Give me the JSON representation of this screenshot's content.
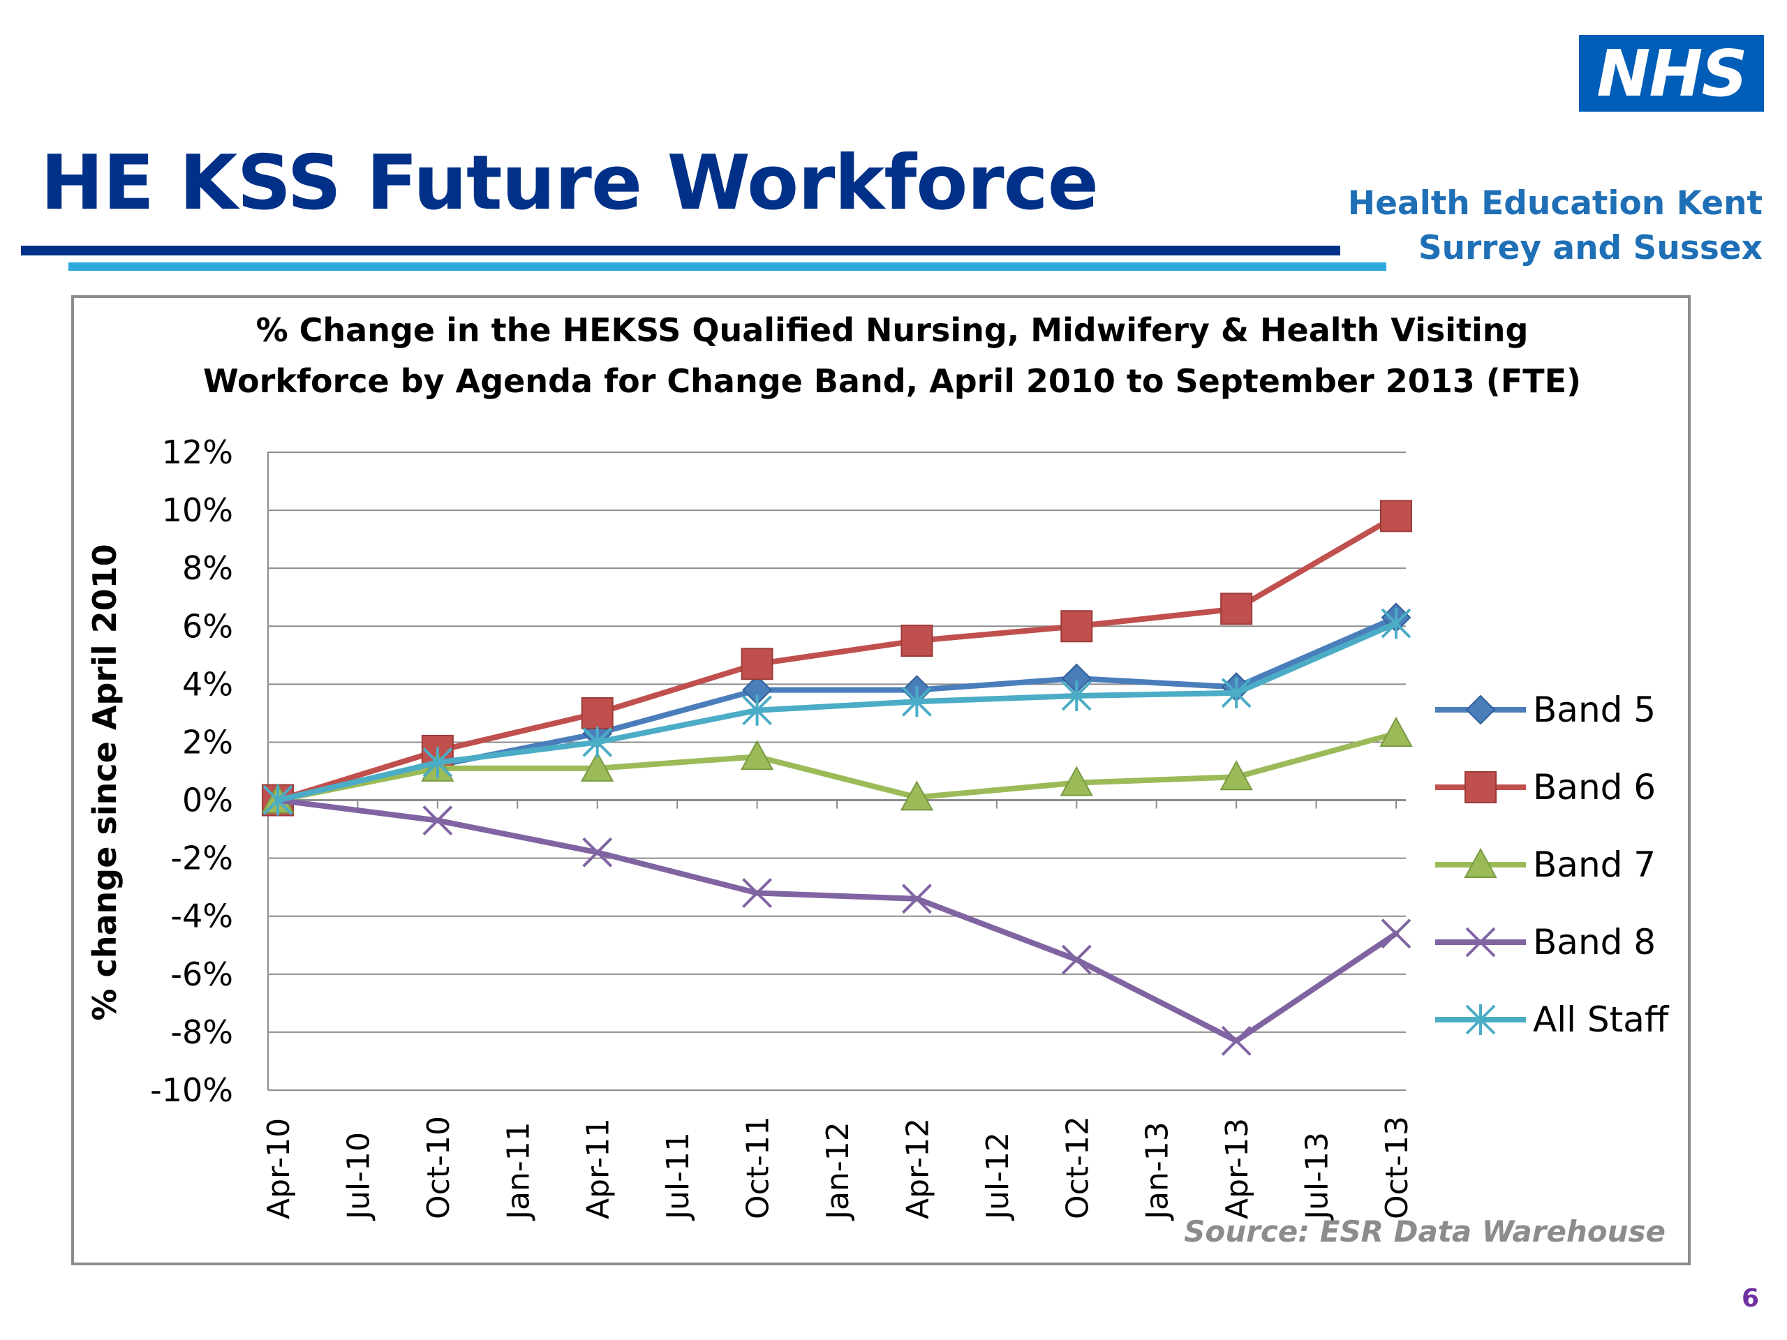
{
  "slide": {
    "logo": "NHS",
    "title": "HE KSS Future Workforce",
    "org_line1": "Health Education Kent",
    "org_line2": "Surrey and Sussex",
    "page_number": "6"
  },
  "colors": {
    "title": "#003087",
    "logo_bg": "#005eb8",
    "org_text": "#1f6fb6",
    "rule_dark": "#003087",
    "rule_light": "#2fa8dc"
  },
  "chart_data": {
    "type": "line",
    "title_line1": "% Change in the HEKSS Qualified Nursing, Midwifery & Health Visiting",
    "title_line2": "Workforce by Agenda for Change Band, April 2010 to September 2013 (FTE)",
    "ylabel": "% change since April 2010",
    "xlabel": "",
    "ylim": [
      -10,
      12
    ],
    "ytick_step": 2,
    "ytick_labels": [
      "-10%",
      "-8%",
      "-6%",
      "-4%",
      "-2%",
      "0%",
      "2%",
      "4%",
      "6%",
      "8%",
      "10%",
      "12%"
    ],
    "x_tick_labels": [
      "Apr-10",
      "Jul-10",
      "Oct-10",
      "Jan-11",
      "Apr-11",
      "Jul-11",
      "Oct-11",
      "Jan-12",
      "Apr-12",
      "Jul-12",
      "Oct-12",
      "Jan-13",
      "Apr-13",
      "Jul-13",
      "Oct-13"
    ],
    "grid": true,
    "legend_position": "right",
    "source": "Source: ESR Data Warehouse",
    "series": [
      {
        "name": "Band 5",
        "color": "#4a7ebb",
        "marker": "diamond",
        "x": [
          "Apr-10",
          "Oct-10",
          "Apr-11",
          "Oct-11",
          "Apr-12",
          "Oct-12",
          "Apr-13",
          "Oct-13"
        ],
        "values": [
          0,
          1.2,
          2.3,
          3.8,
          3.8,
          4.2,
          3.9,
          6.3
        ]
      },
      {
        "name": "Band 6",
        "color": "#c0504d",
        "marker": "square",
        "x": [
          "Apr-10",
          "Oct-10",
          "Apr-11",
          "Oct-11",
          "Apr-12",
          "Oct-12",
          "Apr-13",
          "Oct-13"
        ],
        "values": [
          0,
          1.7,
          3.0,
          4.7,
          5.5,
          6.0,
          6.6,
          9.8
        ]
      },
      {
        "name": "Band 7",
        "color": "#9bbb59",
        "marker": "triangle",
        "x": [
          "Apr-10",
          "Oct-10",
          "Apr-11",
          "Oct-11",
          "Apr-12",
          "Oct-12",
          "Apr-13",
          "Oct-13"
        ],
        "values": [
          0,
          1.1,
          1.1,
          1.5,
          0.1,
          0.6,
          0.8,
          2.3
        ]
      },
      {
        "name": "Band 8",
        "color": "#8064a2",
        "marker": "x",
        "x": [
          "Apr-10",
          "Oct-10",
          "Apr-11",
          "Oct-11",
          "Apr-12",
          "Oct-12",
          "Apr-13",
          "Oct-13"
        ],
        "values": [
          0,
          -0.7,
          -1.8,
          -3.2,
          -3.4,
          -5.5,
          -8.3,
          -4.6
        ]
      },
      {
        "name": "All Staff",
        "color": "#4bacc6",
        "marker": "asterisk",
        "x": [
          "Apr-10",
          "Oct-10",
          "Apr-11",
          "Oct-11",
          "Apr-12",
          "Oct-12",
          "Apr-13",
          "Oct-13"
        ],
        "values": [
          0,
          1.3,
          2.0,
          3.1,
          3.4,
          3.6,
          3.7,
          6.1
        ]
      }
    ]
  }
}
